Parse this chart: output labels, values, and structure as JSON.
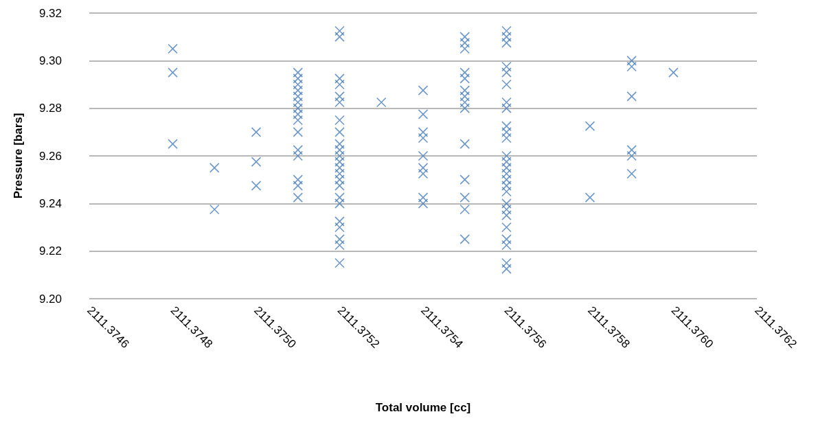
{
  "chart_data": {
    "type": "scatter",
    "xlabel": "Total volume [cc]",
    "ylabel": "Pressure [bars]",
    "marker": "cross",
    "grid": "y",
    "xlim": [
      2111.3746,
      2111.3762
    ],
    "xticks": [
      {
        "value": 2111.3746,
        "label": "2111.3746"
      },
      {
        "value": 2111.3748,
        "label": "2111.3748"
      },
      {
        "value": 2111.375,
        "label": "2111.3750"
      },
      {
        "value": 2111.3752,
        "label": "2111.3752"
      },
      {
        "value": 2111.3754,
        "label": "2111.3754"
      },
      {
        "value": 2111.3756,
        "label": "2111.3756"
      },
      {
        "value": 2111.3758,
        "label": "2111.3758"
      },
      {
        "value": 2111.376,
        "label": "2111.3760"
      },
      {
        "value": 2111.3762,
        "label": "2111.3762"
      }
    ],
    "ylim": [
      9.2,
      9.32
    ],
    "yticks": [
      {
        "value": 9.2,
        "label": "9.20"
      },
      {
        "value": 9.22,
        "label": "9.22"
      },
      {
        "value": 9.24,
        "label": "9.24"
      },
      {
        "value": 9.26,
        "label": "9.26"
      },
      {
        "value": 9.28,
        "label": "9.28"
      },
      {
        "value": 9.3,
        "label": "9.30"
      },
      {
        "value": 9.32,
        "label": "9.32"
      }
    ],
    "series": [
      {
        "color": "#4a7ebb",
        "x": [
          2111.3748,
          2111.3748,
          2111.3748,
          2111.3749,
          2111.3749,
          2111.375,
          2111.375,
          2111.375,
          2111.3751,
          2111.3751,
          2111.3751,
          2111.3751,
          2111.3751,
          2111.3751,
          2111.3751,
          2111.3751,
          2111.3751,
          2111.3751,
          2111.3751,
          2111.3751,
          2111.3751,
          2111.3751,
          2111.3751,
          2111.3752,
          2111.3752,
          2111.3752,
          2111.3752,
          2111.3752,
          2111.3752,
          2111.3752,
          2111.3752,
          2111.3752,
          2111.3752,
          2111.3752,
          2111.3752,
          2111.3752,
          2111.3752,
          2111.3752,
          2111.3752,
          2111.3752,
          2111.3752,
          2111.3752,
          2111.3752,
          2111.3752,
          2111.3752,
          2111.3752,
          2111.3753,
          2111.3754,
          2111.3754,
          2111.3754,
          2111.3754,
          2111.3754,
          2111.3754,
          2111.3754,
          2111.3754,
          2111.3754,
          2111.3755,
          2111.3755,
          2111.3755,
          2111.3755,
          2111.3755,
          2111.3755,
          2111.3755,
          2111.3755,
          2111.3755,
          2111.3755,
          2111.3755,
          2111.3755,
          2111.3755,
          2111.3755,
          2111.3756,
          2111.3756,
          2111.3756,
          2111.3756,
          2111.3756,
          2111.3756,
          2111.3756,
          2111.3756,
          2111.3756,
          2111.3756,
          2111.3756,
          2111.3756,
          2111.3756,
          2111.3756,
          2111.3756,
          2111.3756,
          2111.3756,
          2111.3756,
          2111.3756,
          2111.3756,
          2111.3756,
          2111.3756,
          2111.3756,
          2111.3756,
          2111.3756,
          2111.3756,
          2111.3758,
          2111.3758,
          2111.3759,
          2111.3759,
          2111.3759,
          2111.3759,
          2111.3759,
          2111.3759,
          2111.376
        ],
        "values": [
          9.305,
          9.295,
          9.265,
          9.255,
          9.2375,
          9.27,
          9.2575,
          9.2475,
          9.295,
          9.2925,
          9.29,
          9.2875,
          9.285,
          9.2825,
          9.28,
          9.2775,
          9.275,
          9.27,
          9.2625,
          9.26,
          9.25,
          9.2475,
          9.2425,
          9.3125,
          9.31,
          9.2925,
          9.29,
          9.285,
          9.2825,
          9.275,
          9.27,
          9.265,
          9.2625,
          9.26,
          9.2575,
          9.255,
          9.2525,
          9.25,
          9.2475,
          9.2425,
          9.24,
          9.2325,
          9.23,
          9.225,
          9.2225,
          9.215,
          9.2825,
          9.2875,
          9.2775,
          9.27,
          9.2675,
          9.26,
          9.255,
          9.2525,
          9.2425,
          9.24,
          9.31,
          9.3075,
          9.305,
          9.295,
          9.2925,
          9.2875,
          9.285,
          9.2825,
          9.28,
          9.265,
          9.25,
          9.2425,
          9.2375,
          9.225,
          9.3125,
          9.31,
          9.3075,
          9.2975,
          9.295,
          9.29,
          9.2825,
          9.28,
          9.2725,
          9.27,
          9.2675,
          9.26,
          9.2575,
          9.255,
          9.2525,
          9.25,
          9.2475,
          9.245,
          9.24,
          9.2375,
          9.235,
          9.23,
          9.225,
          9.2225,
          9.215,
          9.2125,
          9.2725,
          9.2425,
          9.3,
          9.2975,
          9.285,
          9.2625,
          9.26,
          9.2525,
          9.295
        ]
      }
    ]
  }
}
